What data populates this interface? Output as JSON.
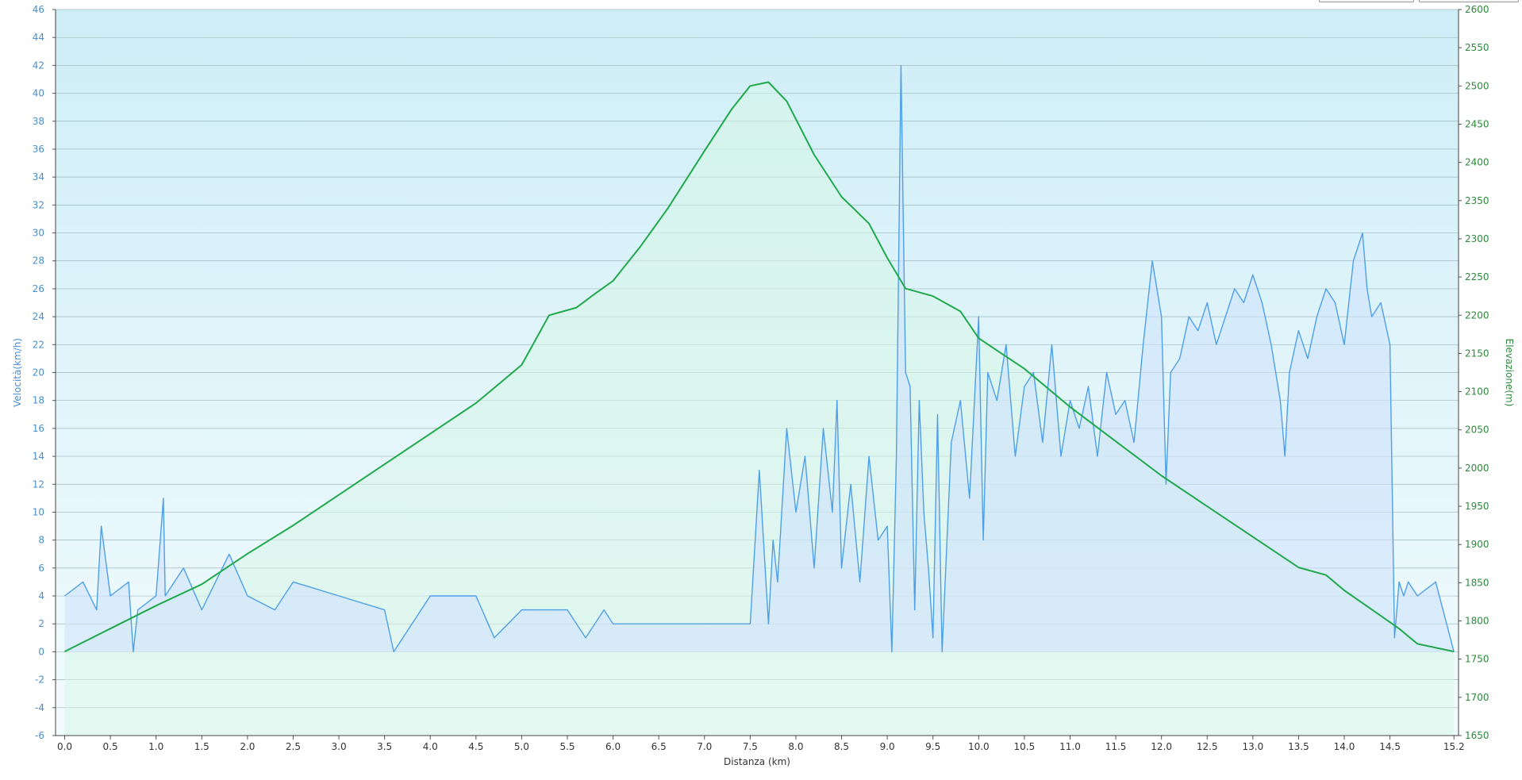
{
  "toolbar": {
    "buttons": [
      {
        "name": "toolbar-button-1"
      },
      {
        "name": "toolbar-button-2"
      }
    ]
  },
  "chart_data": {
    "type": "area",
    "xlabel": "Distanza  (km)",
    "ylabel_left": "Velocità(km/h)",
    "ylabel_right": "Elevazione(m)",
    "xlim": [
      -0.1,
      15.25
    ],
    "ylim_left": [
      -6,
      46
    ],
    "ylim_right": [
      1650,
      2600
    ],
    "x_ticks": [
      "0.0",
      "0.5",
      "1.0",
      "1.5",
      "2.0",
      "2.5",
      "3.0",
      "3.5",
      "4.0",
      "4.5",
      "5.0",
      "5.5",
      "6.0",
      "6.5",
      "7.0",
      "7.5",
      "8.0",
      "8.5",
      "9.0",
      "9.5",
      "10.0",
      "10.5",
      "11.0",
      "11.5",
      "12.0",
      "12.5",
      "13.0",
      "13.5",
      "14.0",
      "14.5",
      "15.2"
    ],
    "y_left_ticks": [
      "46",
      "44",
      "42",
      "40",
      "38",
      "36",
      "34",
      "32",
      "30",
      "28",
      "26",
      "24",
      "22",
      "20",
      "18",
      "16",
      "14",
      "12",
      "10",
      "8",
      "6",
      "4",
      "2",
      "0",
      "-2",
      "-4",
      "-6"
    ],
    "y_right_ticks": [
      "2600",
      "2550",
      "2500",
      "2450",
      "2400",
      "2350",
      "2300",
      "2250",
      "2200",
      "2150",
      "2100",
      "2050",
      "2000",
      "1950",
      "1900",
      "1850",
      "1800",
      "1750",
      "1700",
      "1650"
    ],
    "grid": true,
    "colors": {
      "speed": "#4f9fe8",
      "elevation": "#1fa84c",
      "left_axis": "#4a8fd0",
      "right_axis": "#2a8a3a",
      "bg_top": "#cfeef8",
      "bg_bottom": "#f2fbfd"
    },
    "series": [
      {
        "name": "Elevazione(m)",
        "axis": "right",
        "color": "#1fa84c",
        "x": [
          0.0,
          0.5,
          1.0,
          1.5,
          2.0,
          2.5,
          3.0,
          3.5,
          4.0,
          4.5,
          5.0,
          5.3,
          5.6,
          5.8,
          6.0,
          6.3,
          6.6,
          7.0,
          7.3,
          7.5,
          7.7,
          7.9,
          8.2,
          8.5,
          8.8,
          9.0,
          9.2,
          9.5,
          9.8,
          10.0,
          10.5,
          11.0,
          11.5,
          12.0,
          12.5,
          13.0,
          13.5,
          13.8,
          14.0,
          14.3,
          14.6,
          14.8,
          15.2
        ],
        "y": [
          1760,
          1790,
          1820,
          1848,
          1888,
          1925,
          1965,
          2005,
          2045,
          2085,
          2135,
          2200,
          2210,
          2228,
          2245,
          2290,
          2340,
          2415,
          2470,
          2500,
          2505,
          2480,
          2410,
          2355,
          2320,
          2275,
          2235,
          2225,
          2205,
          2170,
          2130,
          2080,
          2035,
          1990,
          1950,
          1910,
          1870,
          1860,
          1840,
          1815,
          1790,
          1770,
          1760
        ]
      },
      {
        "name": "Velocità(km/h)",
        "axis": "left",
        "color": "#4f9fe8",
        "x": [
          0.0,
          0.2,
          0.35,
          0.4,
          0.5,
          0.7,
          0.75,
          0.8,
          1.0,
          1.08,
          1.1,
          1.3,
          1.5,
          1.8,
          2.0,
          2.3,
          2.5,
          3.0,
          3.5,
          3.6,
          4.0,
          4.5,
          4.7,
          5.0,
          5.5,
          5.7,
          5.9,
          6.0,
          6.3,
          6.5,
          7.0,
          7.5,
          7.6,
          7.7,
          7.75,
          7.8,
          7.9,
          8.0,
          8.1,
          8.2,
          8.3,
          8.4,
          8.45,
          8.5,
          8.6,
          8.7,
          8.8,
          8.9,
          9.0,
          9.05,
          9.1,
          9.15,
          9.2,
          9.25,
          9.3,
          9.35,
          9.4,
          9.45,
          9.5,
          9.55,
          9.6,
          9.7,
          9.8,
          9.9,
          10.0,
          10.05,
          10.1,
          10.2,
          10.3,
          10.4,
          10.5,
          10.6,
          10.7,
          10.8,
          10.9,
          11.0,
          11.1,
          11.2,
          11.3,
          11.4,
          11.5,
          11.6,
          11.7,
          11.8,
          11.9,
          12.0,
          12.05,
          12.1,
          12.2,
          12.3,
          12.4,
          12.5,
          12.6,
          12.7,
          12.8,
          12.9,
          13.0,
          13.1,
          13.2,
          13.3,
          13.35,
          13.4,
          13.5,
          13.6,
          13.7,
          13.8,
          13.9,
          14.0,
          14.1,
          14.2,
          14.25,
          14.3,
          14.4,
          14.5,
          14.55,
          14.6,
          14.65,
          14.7,
          14.8,
          15.0,
          15.2
        ],
        "y": [
          4,
          5,
          3,
          9,
          4,
          5,
          0,
          3,
          4,
          11,
          4,
          6,
          3,
          7,
          4,
          3,
          5,
          4,
          3,
          0,
          4,
          4,
          1,
          3,
          3,
          1,
          3,
          2,
          2,
          2,
          2,
          2,
          13,
          2,
          8,
          5,
          16,
          10,
          14,
          6,
          16,
          10,
          18,
          6,
          12,
          5,
          14,
          8,
          9,
          0,
          14,
          42,
          20,
          19,
          3,
          18,
          10,
          6,
          1,
          17,
          0,
          15,
          18,
          11,
          24,
          8,
          20,
          18,
          22,
          14,
          19,
          20,
          15,
          22,
          14,
          18,
          16,
          19,
          14,
          20,
          17,
          18,
          15,
          22,
          28,
          24,
          12,
          20,
          21,
          24,
          23,
          25,
          22,
          24,
          26,
          25,
          27,
          25,
          22,
          18,
          14,
          20,
          23,
          21,
          24,
          26,
          25,
          22,
          28,
          30,
          26,
          24,
          25,
          22,
          1,
          5,
          4,
          5,
          4,
          5,
          0
        ]
      }
    ]
  }
}
